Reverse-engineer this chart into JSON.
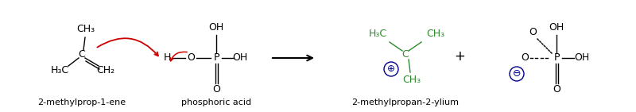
{
  "bg_color": "#ffffff",
  "text_color": "#000000",
  "green_color": "#2d8a2d",
  "red_color": "#cc0000",
  "blue_color": "#00008b",
  "label_1": "2-methylprop-1-ene",
  "label_2": "phosphoric acid",
  "label_3": "2-methylpropan-2-ylium",
  "figsize": [
    8.0,
    1.41
  ],
  "dpi": 100
}
